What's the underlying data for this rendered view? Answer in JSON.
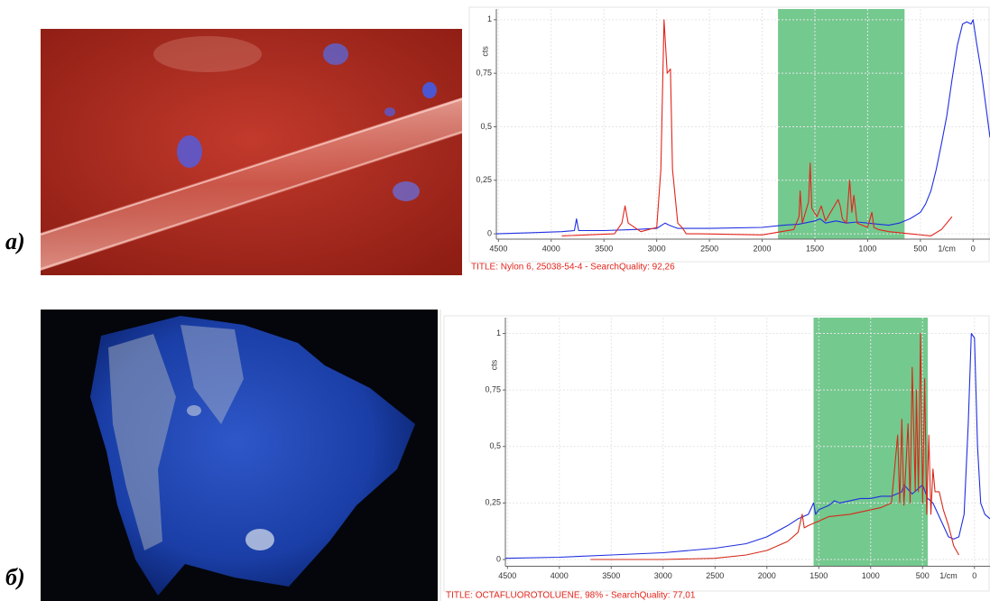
{
  "panel_labels": [
    "а)",
    "б)"
  ],
  "chart_data": [
    {
      "type": "line",
      "title": "TITLE:  Nylon 6, 25038-54-4 - SearchQuality: 92,26",
      "y_label": "cts",
      "x_unit_label": "1/cm",
      "xlim": [
        4520,
        -160
      ],
      "ylim": [
        -0.025,
        1.05
      ],
      "xticks": [
        4500,
        4000,
        3500,
        3000,
        2500,
        2000,
        1500,
        1000,
        500,
        0
      ],
      "yticks": [
        0,
        {
          "value": 0.25,
          "label": "0,25"
        },
        {
          "value": 0.5,
          "label": "0,5"
        },
        {
          "value": 0.75,
          "label": "0,75"
        },
        1
      ],
      "grid": true,
      "highlight": [
        1850,
        650
      ],
      "highlight_color": "#5cbf7a",
      "series": [
        {
          "color": "#1f2fe0",
          "x": [
            4520,
            4200,
            3900,
            3780,
            3760,
            3740,
            3500,
            3200,
            3000,
            2920,
            2880,
            2800,
            2500,
            2000,
            1800,
            1650,
            1500,
            1450,
            1400,
            1300,
            1200,
            1100,
            1000,
            900,
            800,
            700,
            600,
            500,
            450,
            400,
            350,
            300,
            250,
            200,
            150,
            100,
            60,
            20,
            0,
            -30,
            -80,
            -120,
            -160
          ],
          "values": [
            0.0,
            0.005,
            0.01,
            0.015,
            0.07,
            0.015,
            0.015,
            0.02,
            0.025,
            0.05,
            0.04,
            0.025,
            0.025,
            0.03,
            0.04,
            0.045,
            0.06,
            0.07,
            0.05,
            0.06,
            0.05,
            0.055,
            0.05,
            0.045,
            0.04,
            0.05,
            0.07,
            0.1,
            0.14,
            0.2,
            0.3,
            0.42,
            0.55,
            0.72,
            0.88,
            0.98,
            0.99,
            0.98,
            1.0,
            0.9,
            0.75,
            0.6,
            0.45
          ]
        },
        {
          "color": "#e3241b",
          "x": [
            3900,
            3400,
            3330,
            3300,
            3270,
            3150,
            3000,
            2960,
            2930,
            2900,
            2870,
            2850,
            2800,
            2760,
            2720,
            2600,
            2000,
            1700,
            1650,
            1640,
            1620,
            1560,
            1545,
            1530,
            1480,
            1440,
            1400,
            1280,
            1260,
            1240,
            1200,
            1170,
            1150,
            1130,
            1100,
            1000,
            960,
            940,
            900,
            800,
            600,
            400,
            300,
            250,
            200
          ],
          "values": [
            -0.01,
            0.0,
            0.05,
            0.13,
            0.05,
            0.01,
            0.03,
            0.3,
            1.0,
            0.75,
            0.77,
            0.3,
            0.05,
            0.03,
            0.0,
            0.0,
            -0.005,
            0.02,
            0.08,
            0.2,
            0.05,
            0.15,
            0.33,
            0.12,
            0.08,
            0.13,
            0.06,
            0.16,
            0.13,
            0.07,
            0.05,
            0.25,
            0.1,
            0.18,
            0.05,
            0.03,
            0.1,
            0.03,
            0.02,
            0.01,
            0.0,
            -0.01,
            0.02,
            0.05,
            0.08
          ]
        }
      ]
    },
    {
      "type": "line",
      "title": "TITLE:  OCTAFLUOROTOLUENE, 98% - SearchQuality: 77,01",
      "y_label": "cts",
      "x_unit_label": "1/cm",
      "xlim": [
        4520,
        -150
      ],
      "ylim": [
        -0.03,
        1.07
      ],
      "xticks": [
        4500,
        4000,
        3500,
        3000,
        2500,
        2000,
        1500,
        1000,
        500,
        0
      ],
      "yticks": [
        0,
        {
          "value": 0.25,
          "label": "0,25"
        },
        {
          "value": 0.5,
          "label": "0,5"
        },
        {
          "value": 0.75,
          "label": "0,75"
        },
        1
      ],
      "grid": true,
      "highlight": [
        1550,
        450
      ],
      "highlight_color": "#5cbf7a",
      "series": [
        {
          "color": "#1f2fe0",
          "x": [
            4520,
            4000,
            3500,
            3000,
            2500,
            2200,
            2000,
            1800,
            1700,
            1600,
            1550,
            1530,
            1500,
            1400,
            1350,
            1300,
            1200,
            1100,
            1000,
            900,
            800,
            700,
            680,
            600,
            550,
            500,
            450,
            400,
            350,
            300,
            250,
            200,
            150,
            100,
            60,
            30,
            0,
            -30,
            -60,
            -100,
            -150
          ],
          "values": [
            0.005,
            0.01,
            0.02,
            0.03,
            0.05,
            0.07,
            0.1,
            0.15,
            0.18,
            0.2,
            0.25,
            0.2,
            0.22,
            0.24,
            0.26,
            0.25,
            0.26,
            0.27,
            0.27,
            0.28,
            0.28,
            0.3,
            0.33,
            0.29,
            0.31,
            0.33,
            0.27,
            0.25,
            0.2,
            0.15,
            0.1,
            0.09,
            0.1,
            0.2,
            0.6,
            1.0,
            0.98,
            0.5,
            0.25,
            0.2,
            0.18
          ]
        },
        {
          "color": "#d42a1a",
          "x": [
            3700,
            3000,
            2500,
            2200,
            2000,
            1800,
            1700,
            1660,
            1640,
            1600,
            1500,
            1400,
            1200,
            1000,
            900,
            800,
            740,
            720,
            700,
            680,
            640,
            620,
            600,
            570,
            560,
            540,
            520,
            500,
            480,
            460,
            440,
            420,
            400,
            380,
            340,
            300,
            250,
            200,
            150
          ],
          "values": [
            0.0,
            0.0,
            0.005,
            0.02,
            0.04,
            0.08,
            0.12,
            0.2,
            0.14,
            0.15,
            0.17,
            0.19,
            0.2,
            0.22,
            0.23,
            0.25,
            0.55,
            0.25,
            0.62,
            0.24,
            0.6,
            0.25,
            0.85,
            0.3,
            0.75,
            0.3,
            1.0,
            0.25,
            0.8,
            0.2,
            0.55,
            0.2,
            0.4,
            0.3,
            0.3,
            0.22,
            0.15,
            0.06,
            0.02
          ]
        }
      ]
    }
  ]
}
